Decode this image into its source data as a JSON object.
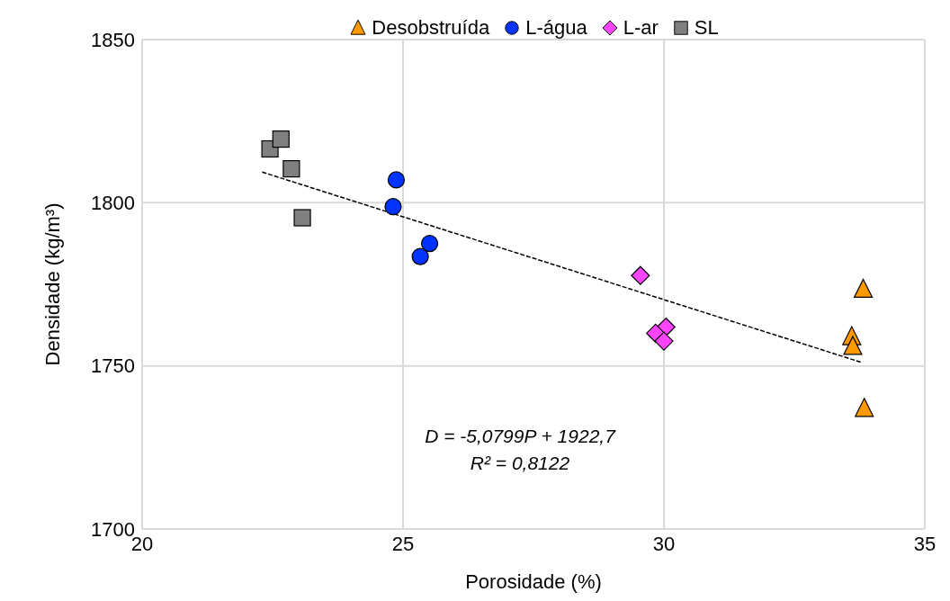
{
  "chart_data": {
    "type": "scatter",
    "xlabel": "Porosidade (%)",
    "ylabel": "Densidade (kg/m³)",
    "xlim": [
      20,
      35
    ],
    "xticks": [
      20,
      25,
      30,
      35
    ],
    "ylim": [
      1700,
      1850
    ],
    "yticks": [
      1700,
      1750,
      1800,
      1850
    ],
    "grid": true,
    "legend": "top",
    "series": [
      {
        "name": "Desobstruída",
        "color": "#ff9900",
        "marker": "triangle",
        "x": [
          33.82,
          33.6,
          33.62,
          33.84
        ],
        "values": [
          1773.5,
          1759,
          1756,
          1737
        ]
      },
      {
        "name": "L-água",
        "color": "#0033ff",
        "marker": "circle",
        "x": [
          24.87,
          24.81,
          25.51,
          25.33
        ],
        "values": [
          1807,
          1798.8,
          1787.5,
          1783.5
        ]
      },
      {
        "name": "L-ar",
        "color": "#ff44ff",
        "marker": "diamond",
        "x": [
          29.55,
          30.04,
          29.84,
          30.0
        ],
        "values": [
          1777.7,
          1761.9,
          1760,
          1757.6
        ]
      },
      {
        "name": "SL",
        "color": "#808080",
        "marker": "square",
        "x": [
          22.45,
          22.66,
          22.86,
          23.07
        ],
        "values": [
          1816.5,
          1819.5,
          1810.4,
          1795.4
        ]
      },
      {
        "type": "line",
        "color": "#000000",
        "line_style": "dashed",
        "marker": "none",
        "x": [
          22.3,
          33.8
        ],
        "values": [
          1809.4,
          1751.0
        ]
      }
    ],
    "annotations": [
      "D = -5,0799P + 1922,7",
      "R² = 0,8122"
    ]
  }
}
